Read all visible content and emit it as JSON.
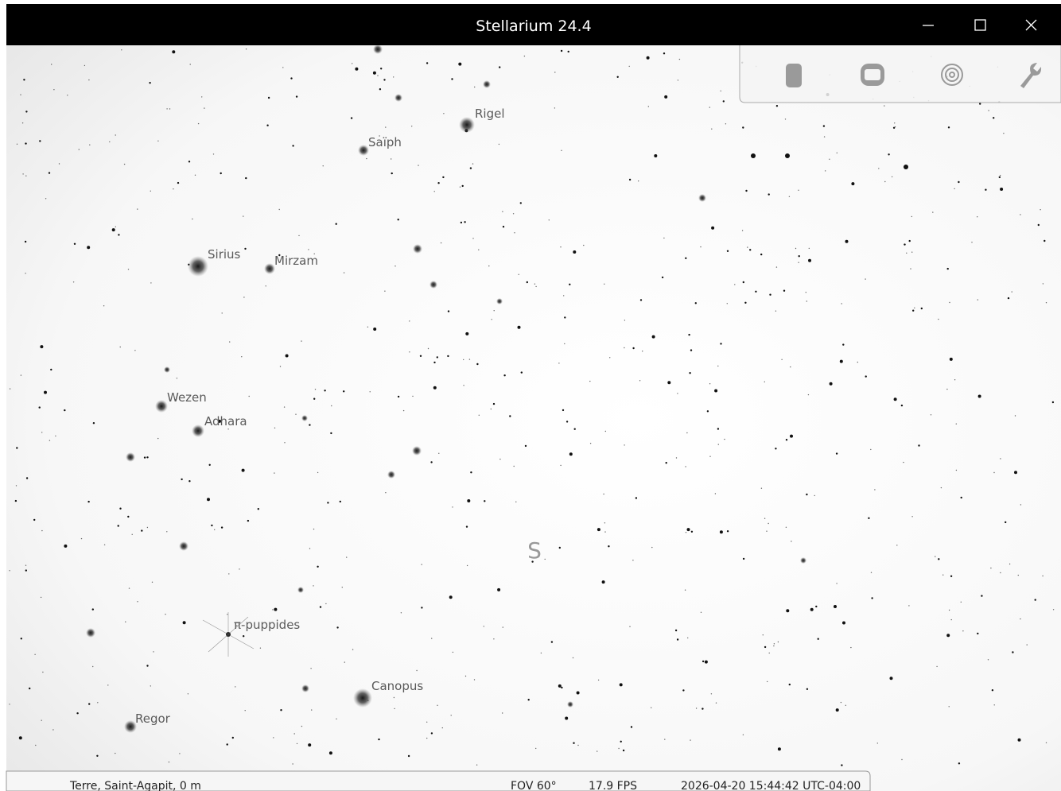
{
  "window": {
    "title": "Stellarium 24.4"
  },
  "sky": {
    "labels": [
      "Rigel",
      "Saïph",
      "Sirius",
      "Mirzam",
      "Wezen",
      "Adhara",
      "π-puppides",
      "Canopus",
      "Regor"
    ],
    "cardinal": "S"
  },
  "status_bar": {
    "location": "Terre, Saint-Agapit, 0 m",
    "fov": "FOV 60°",
    "fps": "17.9 FPS",
    "datetime": "2026-04-20 15:44:42 UTC-04:00"
  }
}
